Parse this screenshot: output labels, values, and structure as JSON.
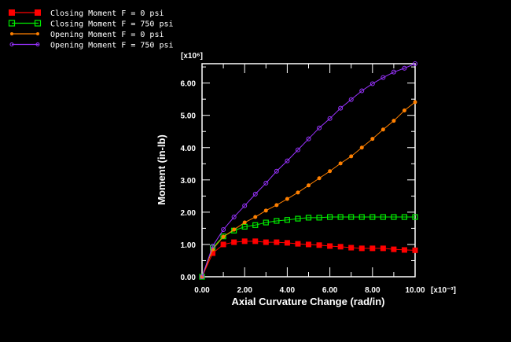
{
  "chart_data": {
    "type": "line",
    "xlabel": "Axial Curvature Change (rad/in)",
    "ylabel": "Moment (in-lb)",
    "x_multiplier": "[x10⁻³]",
    "y_multiplier": "[x10⁶]",
    "xlim": [
      0,
      10
    ],
    "ylim": [
      0,
      6.6
    ],
    "x_ticks": [
      "0.00",
      "2.00",
      "4.00",
      "6.00",
      "8.00",
      "10.00"
    ],
    "y_ticks": [
      "0.00",
      "1.00",
      "2.00",
      "3.00",
      "4.00",
      "5.00",
      "6.00"
    ],
    "grid": false,
    "legend_position": "top-left",
    "x": [
      0,
      0.5,
      1,
      1.5,
      2,
      2.5,
      3,
      3.5,
      4,
      4.5,
      5,
      5.5,
      6,
      6.5,
      7,
      7.5,
      8,
      8.5,
      9,
      9.5,
      10
    ],
    "series": [
      {
        "name": "Closing Moment F = 0 psi",
        "color": "#ff0000",
        "marker": "filled-square",
        "values": [
          0,
          0.73,
          1.0,
          1.07,
          1.1,
          1.1,
          1.07,
          1.07,
          1.05,
          1.02,
          1.0,
          0.98,
          0.95,
          0.93,
          0.9,
          0.88,
          0.88,
          0.88,
          0.85,
          0.83,
          0.82
        ]
      },
      {
        "name": "Closing Moment F = 750 psi",
        "color": "#00ee00",
        "marker": "open-square",
        "values": [
          0,
          0.9,
          1.25,
          1.43,
          1.55,
          1.6,
          1.68,
          1.73,
          1.76,
          1.8,
          1.83,
          1.83,
          1.85,
          1.85,
          1.85,
          1.85,
          1.85,
          1.85,
          1.85,
          1.85,
          1.85
        ]
      },
      {
        "name": "Opening Moment F = 0 psi",
        "color": "#ff8000",
        "marker": "filled-circle",
        "values": [
          0,
          0.85,
          1.24,
          1.46,
          1.68,
          1.85,
          2.05,
          2.22,
          2.41,
          2.61,
          2.83,
          3.05,
          3.27,
          3.51,
          3.73,
          4.0,
          4.27,
          4.56,
          4.83,
          5.15,
          5.41
        ]
      },
      {
        "name": "Opening Moment F = 750 psi",
        "color": "#9933ff",
        "marker": "open-circle",
        "values": [
          0,
          0.95,
          1.46,
          1.85,
          2.2,
          2.56,
          2.9,
          3.27,
          3.59,
          3.93,
          4.27,
          4.61,
          4.9,
          5.22,
          5.49,
          5.76,
          5.98,
          6.17,
          6.34,
          6.46,
          6.6
        ]
      }
    ]
  }
}
